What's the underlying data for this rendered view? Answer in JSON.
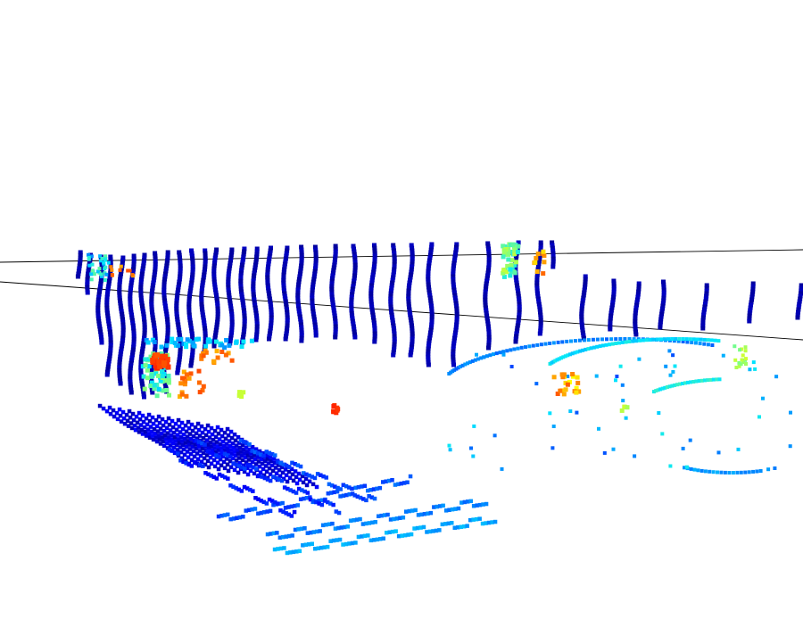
{
  "scene": {
    "type": "lidar-point-cloud",
    "background": "#ffffff",
    "colormap": "jet",
    "colormap_stops": [
      "#00008b",
      "#0000ff",
      "#0080ff",
      "#00e5ff",
      "#7fff7f",
      "#ffff00",
      "#ff8000",
      "#ff2000"
    ]
  }
}
